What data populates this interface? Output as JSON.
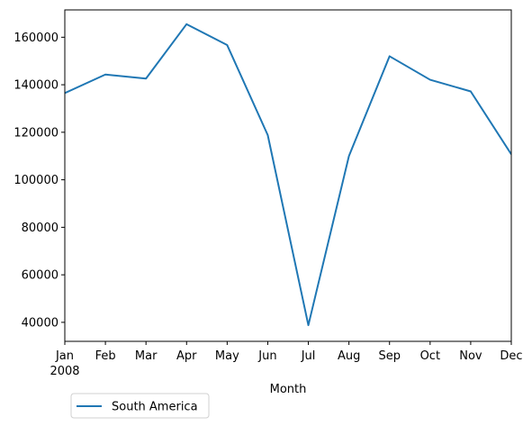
{
  "chart_data": {
    "type": "line",
    "title": "",
    "xlabel": "Month",
    "ylabel": "",
    "x": [
      "Jan",
      "Feb",
      "Mar",
      "Apr",
      "May",
      "Jun",
      "Jul",
      "Aug",
      "Sep",
      "Oct",
      "Nov",
      "Dec"
    ],
    "x_sublabel_first": "2008",
    "series": [
      {
        "name": "South America",
        "color": "#1f77b4",
        "values": [
          136500,
          144300,
          142600,
          165500,
          156700,
          118800,
          38800,
          110000,
          152000,
          142100,
          137200,
          110700
        ]
      }
    ],
    "ylim": [
      32000,
      171500
    ],
    "yticks": [
      40000,
      60000,
      80000,
      100000,
      120000,
      140000,
      160000
    ],
    "grid": false,
    "legend_position": "bottom-left, below axes"
  }
}
